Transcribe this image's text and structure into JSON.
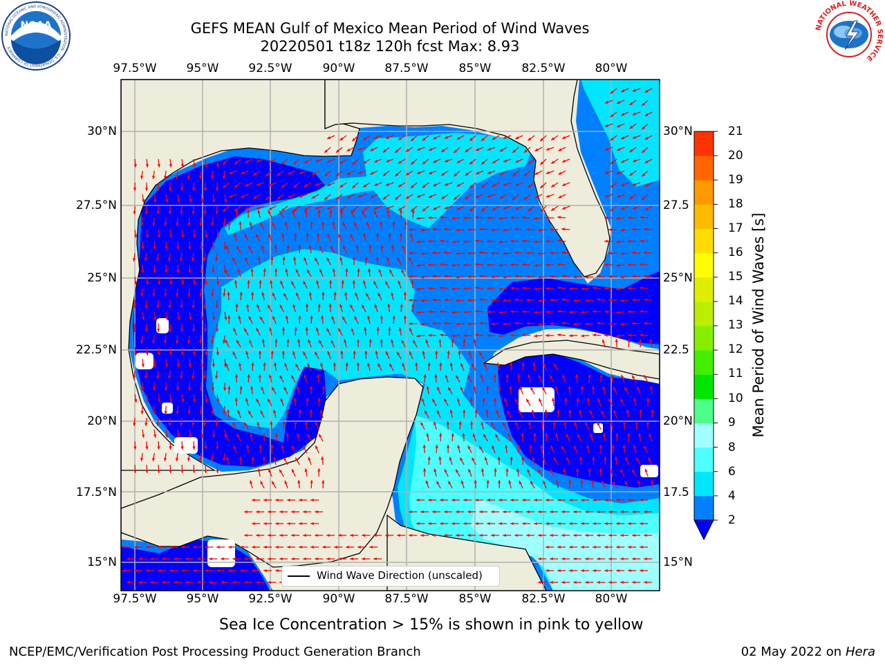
{
  "header": {
    "title_line1": "GEFS MEAN Gulf of Mexico Mean Period of Wind Waves",
    "title_line2": "20220501 t18z 120h fcst   Max: 8.93"
  },
  "logos": {
    "left": "NOAA",
    "left_ring_text": "NATIONAL OCEANIC AND ATMOSPHERIC ADMINISTRATION · U.S. DEPARTMENT OF COMMERCE",
    "right_ring_text": "NATIONAL WEATHER SERVICE"
  },
  "map": {
    "lon_labels_top": [
      "97.5°W",
      "95°W",
      "92.5°W",
      "90°W",
      "87.5°W",
      "85°W",
      "82.5°W",
      "80°W"
    ],
    "lon_labels_bottom": [
      "97.5°W",
      "95°W",
      "92.5°W",
      "90°W",
      "87.5°W",
      "85°W",
      "82.5°W",
      "80°W"
    ],
    "lat_labels_left": [
      "30°N",
      "27.5°N",
      "25°N",
      "22.5°N",
      "20°N",
      "17.5°N",
      "15°N"
    ],
    "lat_labels_right": [
      "30°N",
      "27.5",
      "25°N",
      "22.5",
      "20°N",
      "17.5",
      "15°N"
    ],
    "legend_label": "Wind Wave Direction (unscaled)",
    "land_color": "#eeecdb",
    "arrow_color": "#ff0000"
  },
  "colorbar": {
    "label": "Mean Period of Wind Waves [s]",
    "ticks": [
      "2",
      "4",
      "6",
      "8",
      "9",
      "10",
      "11",
      "12",
      "13",
      "14",
      "15",
      "16",
      "17",
      "18",
      "19",
      "20",
      "21"
    ],
    "colors": [
      "#0080ff",
      "#00e6ff",
      "#4dffff",
      "#a0ffff",
      "#4dff88",
      "#00e600",
      "#44ee00",
      "#88ee00",
      "#bbee00",
      "#ddee00",
      "#ffff00",
      "#ffdd00",
      "#ffbb00",
      "#ff9900",
      "#ff6600",
      "#ff3300",
      "#ff0000"
    ],
    "extend_color": "#0000ff"
  },
  "footer": {
    "note": "Sea Ice Concentration > 15% is shown in pink to yellow",
    "left": "NCEP/EMC/Verification Post Processing Product Generation Branch",
    "right_date": "02 May 2022 on",
    "right_host": "Hera"
  }
}
